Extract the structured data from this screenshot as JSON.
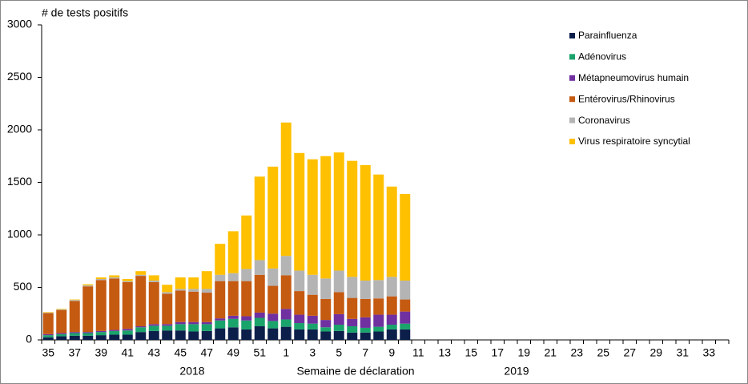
{
  "chart_data": {
    "type": "stacked-bar",
    "y_label": "# de tests positifs",
    "x_label": "Semaine de déclaration",
    "x_group_labels": [
      "2018",
      "2019"
    ],
    "categories": [
      "35",
      null,
      "37",
      null,
      "39",
      null,
      "41",
      null,
      "43",
      null,
      "45",
      null,
      "47",
      null,
      "49",
      null,
      "51",
      null,
      "1",
      null,
      "3",
      null,
      "5",
      null,
      "7",
      null,
      "9",
      null,
      "11",
      null,
      "13",
      null,
      "15",
      null,
      "17",
      null,
      "19",
      null,
      "21",
      null,
      "23",
      null,
      "25",
      null,
      "27",
      null,
      "29",
      null,
      "31",
      null,
      "33",
      null
    ],
    "ylim": [
      0,
      3000
    ],
    "yticks": [
      0,
      500,
      1000,
      1500,
      2000,
      2500,
      3000
    ],
    "legend": "top-right",
    "series": [
      {
        "name": "Parainfluenza",
        "color": "#0c1f4b",
        "values": [
          25,
          35,
          40,
          40,
          45,
          50,
          50,
          75,
          85,
          90,
          90,
          80,
          85,
          110,
          120,
          100,
          130,
          110,
          125,
          100,
          100,
          80,
          85,
          70,
          70,
          80,
          100,
          100,
          null,
          null,
          null,
          null,
          null,
          null,
          null,
          null,
          null,
          null,
          null,
          null,
          null,
          null,
          null,
          null,
          null,
          null,
          null,
          null,
          null,
          null,
          null,
          null
        ]
      },
      {
        "name": "Adénovirus",
        "color": "#1aa36b",
        "values": [
          20,
          20,
          25,
          25,
          30,
          35,
          40,
          45,
          50,
          45,
          60,
          70,
          65,
          75,
          80,
          85,
          80,
          70,
          70,
          60,
          55,
          40,
          60,
          60,
          45,
          45,
          45,
          55,
          null,
          null,
          null,
          null,
          null,
          null,
          null,
          null,
          null,
          null,
          null,
          null,
          null,
          null,
          null,
          null,
          null,
          null,
          null,
          null,
          null,
          null,
          null,
          null
        ]
      },
      {
        "name": "Métapneumovirus humain",
        "color": "#7030a0",
        "values": [
          10,
          10,
          10,
          10,
          10,
          10,
          15,
          10,
          15,
          15,
          20,
          20,
          20,
          20,
          30,
          40,
          50,
          70,
          100,
          80,
          75,
          70,
          100,
          70,
          100,
          115,
          95,
          115,
          null,
          null,
          null,
          null,
          null,
          null,
          null,
          null,
          null,
          null,
          null,
          null,
          null,
          null,
          null,
          null,
          null,
          null,
          null,
          null,
          null,
          null,
          null,
          null
        ]
      },
      {
        "name": "Entérovirus/Rhinovirus",
        "color": "#c55a11",
        "values": [
          200,
          220,
          295,
          435,
          485,
          490,
          445,
          480,
          400,
          290,
          300,
          290,
          280,
          355,
          330,
          335,
          360,
          265,
          320,
          225,
          200,
          200,
          210,
          200,
          175,
          155,
          175,
          115,
          null,
          null,
          null,
          null,
          null,
          null,
          null,
          null,
          null,
          null,
          null,
          null,
          null,
          null,
          null,
          null,
          null,
          null,
          null,
          null,
          null,
          null,
          null,
          null
        ]
      },
      {
        "name": "Coronavirus",
        "color": "#b4b4b4",
        "values": [
          5,
          5,
          10,
          10,
          10,
          10,
          10,
          10,
          15,
          15,
          15,
          25,
          35,
          60,
          75,
          115,
          140,
          165,
          185,
          195,
          190,
          195,
          205,
          200,
          175,
          175,
          185,
          180,
          null,
          null,
          null,
          null,
          null,
          null,
          null,
          null,
          null,
          null,
          null,
          null,
          null,
          null,
          null,
          null,
          null,
          null,
          null,
          null,
          null,
          null,
          null,
          null
        ]
      },
      {
        "name": "Virus respiratoire syncytial",
        "color": "#ffc000",
        "values": [
          5,
          5,
          5,
          10,
          15,
          20,
          20,
          35,
          50,
          70,
          110,
          110,
          170,
          295,
          400,
          510,
          795,
          970,
          1270,
          1120,
          1100,
          1165,
          1125,
          1105,
          1100,
          1005,
          860,
          825,
          null,
          null,
          null,
          null,
          null,
          null,
          null,
          null,
          null,
          null,
          null,
          null,
          null,
          null,
          null,
          null,
          null,
          null,
          null,
          null,
          null,
          null,
          null,
          null
        ]
      }
    ]
  }
}
